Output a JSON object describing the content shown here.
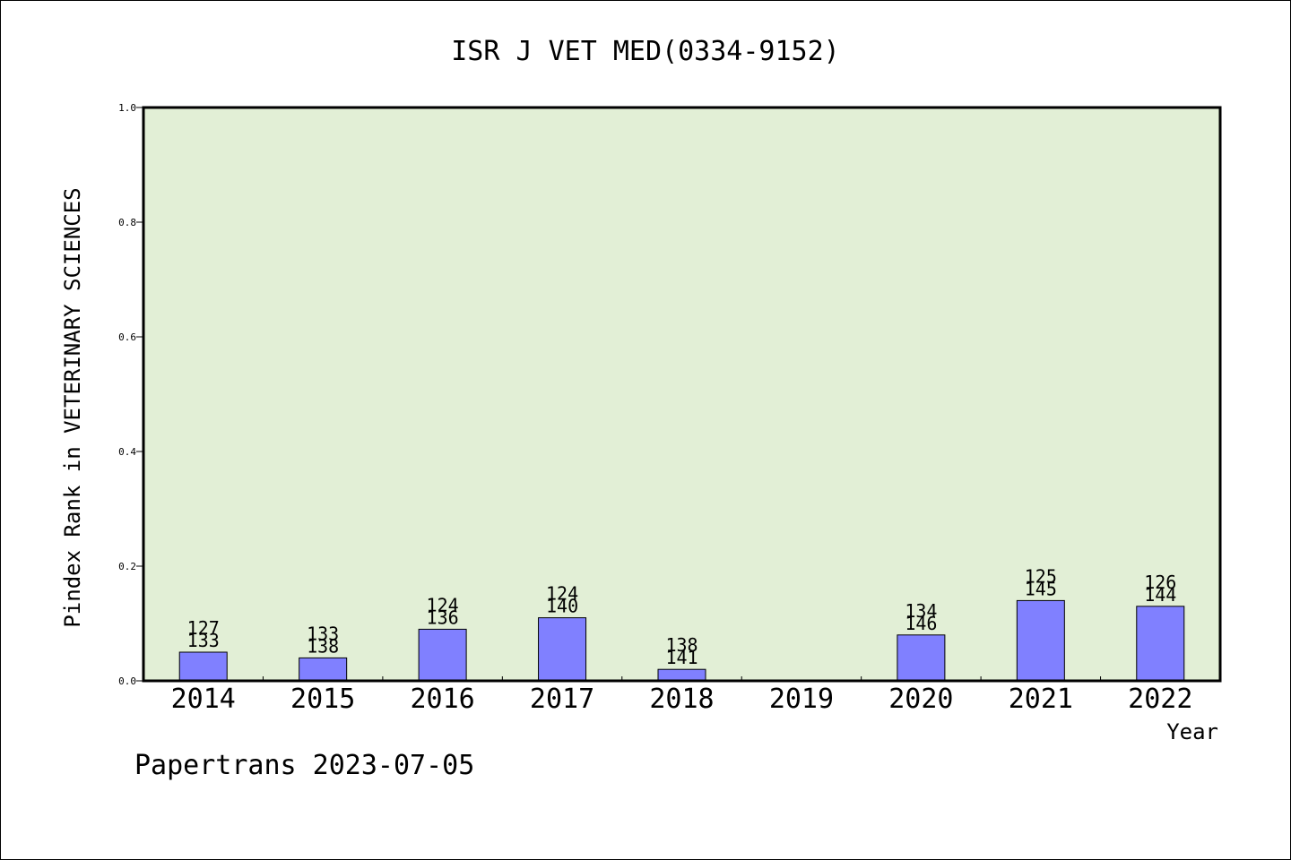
{
  "chart_data": {
    "type": "bar",
    "title": "ISR J VET MED(0334-9152)",
    "xlabel": "Year",
    "ylabel": "Pindex Rank in VETERINARY SCIENCES",
    "ylim": [
      0,
      1.0
    ],
    "yticks": [
      "0.0",
      "0.2",
      "0.4",
      "0.6",
      "0.8",
      "1.0"
    ],
    "categories": [
      "2014",
      "2015",
      "2016",
      "2017",
      "2018",
      "2019",
      "2020",
      "2021",
      "2022"
    ],
    "values": [
      0.05,
      0.04,
      0.09,
      0.11,
      0.02,
      null,
      0.08,
      0.14,
      0.13
    ],
    "bar_labels": [
      [
        "127",
        "133"
      ],
      [
        "133",
        "138"
      ],
      [
        "124",
        "136"
      ],
      [
        "124",
        "140"
      ],
      [
        "138",
        "141"
      ],
      null,
      [
        "134",
        "146"
      ],
      [
        "125",
        "145"
      ],
      [
        "126",
        "144"
      ]
    ],
    "grid": false,
    "colors": {
      "plot_background": "#e2efd6",
      "bar_fill": "#8080ff",
      "frame": "#000000"
    }
  },
  "footer": "Papertrans 2023-07-05"
}
